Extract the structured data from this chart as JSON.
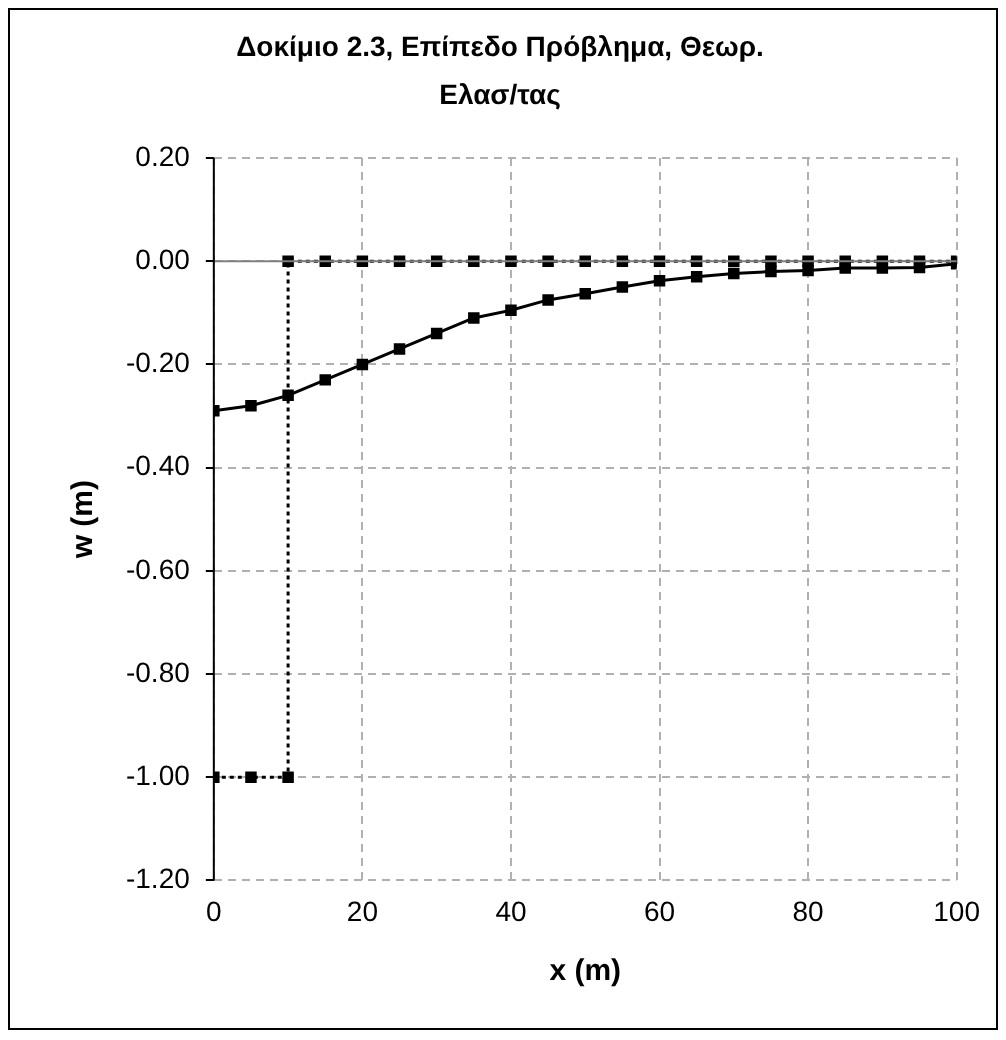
{
  "chart_data": {
    "type": "line",
    "title": "Δοκίμιο 2.3, Επίπεδο Πρόβλημα, Θεωρ. Ελασ/τας",
    "xlabel": "x (m)",
    "ylabel": "w (m)",
    "series": [
      {
        "color": "#000000",
        "line_style": "solid",
        "x": [
          0,
          5,
          10,
          15,
          20,
          25,
          30,
          35,
          40,
          45,
          50,
          55,
          60,
          65,
          70,
          75,
          80,
          85,
          90,
          95,
          100
        ],
        "values": [
          -0.29,
          -0.28,
          -0.26,
          -0.23,
          -0.2,
          -0.17,
          -0.14,
          -0.11,
          -0.095,
          -0.075,
          -0.063,
          -0.05,
          -0.038,
          -0.03,
          -0.024,
          -0.02,
          -0.018,
          -0.013,
          -0.013,
          -0.012,
          -0.005
        ]
      },
      {
        "color": "#000000",
        "line_style": "dotted",
        "x": [
          0,
          5,
          10,
          10,
          15,
          20,
          25,
          30,
          35,
          40,
          45,
          50,
          55,
          60,
          65,
          70,
          75,
          80,
          85,
          90,
          95,
          100
        ],
        "values": [
          -1,
          -1,
          -1,
          0,
          0,
          0,
          0,
          0,
          0,
          0,
          0,
          0,
          0,
          0,
          0,
          0,
          0,
          0,
          0,
          0,
          0,
          0
        ]
      }
    ],
    "xlim": [
      0,
      100
    ],
    "xticks": [
      0,
      20,
      40,
      60,
      80,
      100
    ],
    "ylim": [
      -1.2,
      0.2
    ],
    "yticks": [
      {
        "value": -1.2,
        "label": "-1.20"
      },
      {
        "value": -1,
        "label": "-1.00"
      },
      {
        "value": -0.8,
        "label": "-0.80"
      },
      {
        "value": -0.6,
        "label": "-0.60"
      },
      {
        "value": -0.4,
        "label": "-0.40"
      },
      {
        "value": -0.2,
        "label": "-0.20"
      },
      {
        "value": 0,
        "label": "0.00"
      },
      {
        "value": 0.2,
        "label": "0.20"
      }
    ],
    "ref_lines": [
      {
        "axis": "y",
        "value": 0,
        "color": "#808080",
        "line_style": "solid"
      }
    ],
    "grid": true,
    "legend": false,
    "marker": "square"
  }
}
